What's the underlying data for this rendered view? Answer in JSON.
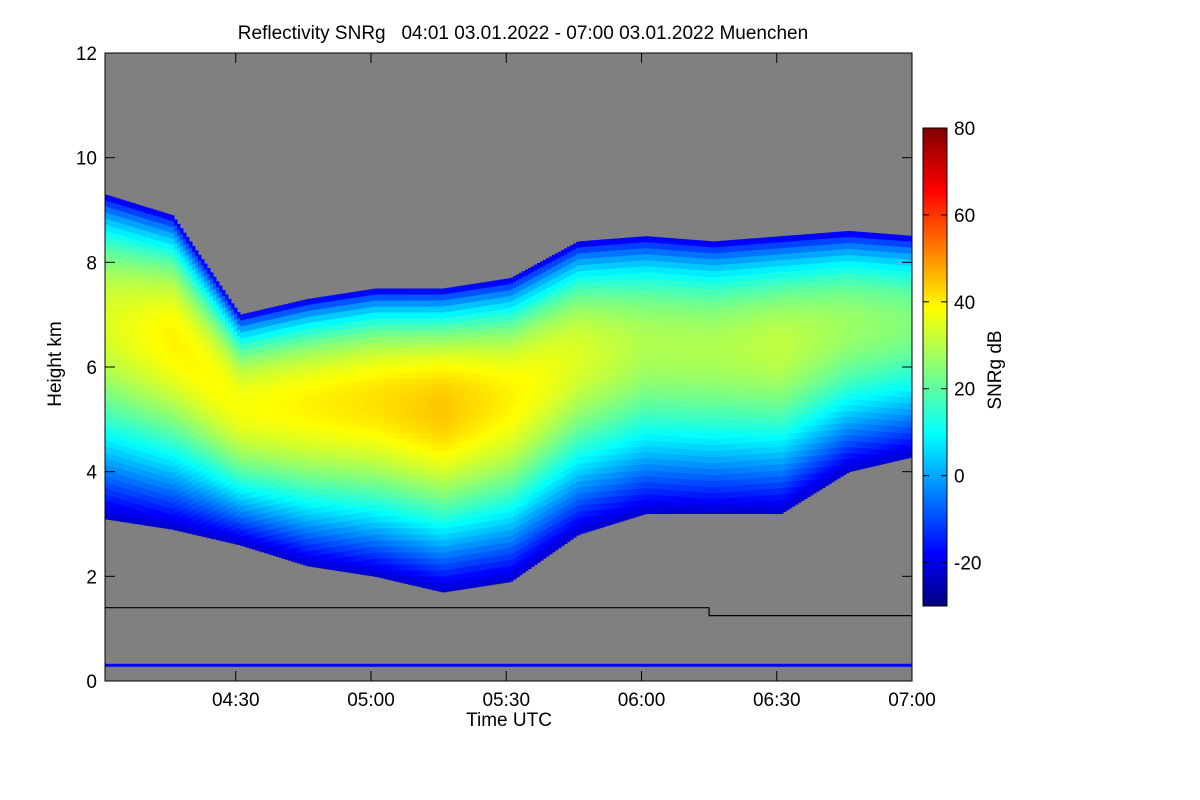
{
  "chart_data": {
    "type": "heatmap",
    "title": "Reflectivity SNRg   04:01 03.01.2022 - 07:00 03.01.2022 Muenchen",
    "xlabel": "Time UTC",
    "ylabel": "Height km",
    "colorbar_label": "SNRg dB",
    "xlim": [
      "04:01",
      "07:00"
    ],
    "x_ticks": [
      "04:30",
      "05:00",
      "05:30",
      "06:00",
      "06:30",
      "07:00"
    ],
    "ylim": [
      0,
      12
    ],
    "y_ticks": [
      "0",
      "2",
      "4",
      "6",
      "8",
      "10",
      "12"
    ],
    "colorbar_range": [
      -30,
      80
    ],
    "colorbar_ticks": [
      "-20",
      "0",
      "20",
      "40",
      "60",
      "80"
    ],
    "colormap": "jet",
    "background_color": "#808080",
    "cloud": {
      "x_minutes": [
        0,
        15,
        30,
        45,
        60,
        75,
        90,
        105,
        120,
        135,
        150,
        165,
        180
      ],
      "cloud_top_km": [
        9.3,
        8.9,
        7.0,
        7.3,
        7.5,
        7.5,
        7.7,
        8.4,
        8.5,
        8.4,
        8.5,
        8.6,
        8.5
      ],
      "cloud_base_km": [
        3.1,
        2.9,
        2.6,
        2.2,
        2.0,
        1.7,
        1.9,
        2.8,
        3.2,
        3.2,
        3.2,
        4.0,
        4.3
      ],
      "peak_snr_db": [
        35,
        40,
        38,
        40,
        42,
        45,
        40,
        35,
        30,
        30,
        32,
        28,
        25
      ]
    },
    "reference_line": {
      "color": "#000000",
      "x_minutes": [
        0,
        134,
        134,
        180
      ],
      "height_km": [
        1.4,
        1.4,
        1.25,
        1.25
      ]
    },
    "near_surface_band": {
      "color": "#0000ff",
      "height_km": 0.3
    }
  }
}
